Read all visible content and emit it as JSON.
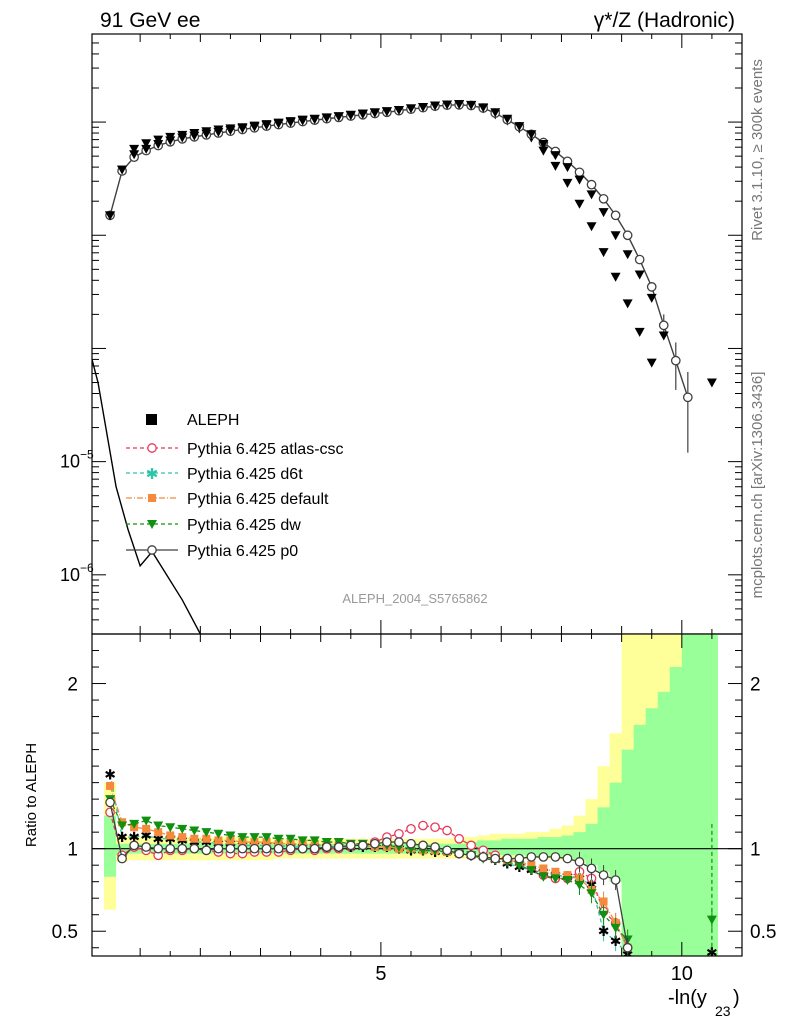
{
  "header": {
    "left_title": "91 GeV ee",
    "right_title": "γ*/Z (Hadronic)"
  },
  "side_labels": {
    "rivet": "Rivet 3.1.10, ≥ 300k events",
    "source": "mcplots.cern.ch [arXiv:1306.3436]"
  },
  "analysis_label": "ALEPH_2004_S5765862",
  "colors": {
    "data": "#000000",
    "atlas_csc": "#e8385a",
    "d6t": "#2ec4a6",
    "default": "#f58a3c",
    "dw": "#109010",
    "p0": "#404040",
    "band_yellow": "#ffff99",
    "band_green": "#99ff99"
  },
  "chart_data": [
    {
      "type": "scatter",
      "panel": "main",
      "xlabel": "-ln(y",
      "xlabel_sub": "23",
      "xlabel_close": ")",
      "ylabel": "",
      "xlim": [
        0.2,
        11.0
      ],
      "yscale": "log",
      "ylim": [
        3e-07,
        0.06
      ],
      "ytick_labels": [
        {
          "value": 1e-05,
          "base": "10",
          "exp": "−5"
        },
        {
          "value": 1e-06,
          "base": "10",
          "exp": "−6"
        }
      ],
      "legend_position": "middle-left",
      "x": [
        0.5,
        0.7,
        0.9,
        1.1,
        1.3,
        1.5,
        1.7,
        1.9,
        2.1,
        2.3,
        2.5,
        2.7,
        2.9,
        3.1,
        3.3,
        3.5,
        3.7,
        3.9,
        4.1,
        4.3,
        4.5,
        4.7,
        4.9,
        5.1,
        5.3,
        5.5,
        5.7,
        5.9,
        6.1,
        6.3,
        6.5,
        6.7,
        6.9,
        7.1,
        7.3,
        7.5,
        7.7,
        7.9,
        8.1,
        8.3,
        8.5,
        8.7,
        8.9,
        9.1,
        9.3,
        9.5,
        9.7,
        9.9,
        10.1,
        10.5
      ],
      "series": [
        {
          "name": "ALEPH",
          "marker": "square",
          "values": [
            0.0015,
            0.0038,
            0.0052,
            0.0058,
            0.0064,
            0.0069,
            0.0073,
            0.0076,
            0.0079,
            0.0082,
            0.0085,
            0.0088,
            0.0091,
            0.0094,
            0.0097,
            0.01,
            0.0103,
            0.0106,
            0.0109,
            0.0112,
            0.0115,
            0.0118,
            0.0121,
            0.0124,
            0.0128,
            0.0132,
            0.0136,
            0.014,
            0.0143,
            0.0144,
            0.0142,
            0.0135,
            0.0122,
            0.0107,
            0.0092,
            0.0078,
            0.0064,
            0.0051,
            0.004,
            0.0031,
            0.0023,
            0.0016,
            0.001,
            0.00068,
            0.00045,
            0.00028,
            0.00013,
            null,
            null,
            5e-05
          ],
          "errors": [
            0,
            0,
            0,
            0,
            0,
            0,
            0,
            0,
            0,
            0,
            0,
            0,
            0,
            0,
            0,
            0,
            0,
            0,
            0,
            0,
            0,
            0,
            0,
            0,
            0,
            0,
            0,
            0,
            0,
            0,
            0,
            0,
            0,
            0,
            0,
            0,
            0,
            0,
            0,
            0,
            0,
            0,
            0,
            0,
            0,
            0,
            0,
            0,
            0,
            0
          ]
        },
        {
          "name": "Pythia 6.425 atlas-csc",
          "marker": "circle-open",
          "dashed": true,
          "hidden_in_main": true,
          "values": []
        },
        {
          "name": "Pythia 6.425 d6t",
          "marker": "star",
          "dashed": true,
          "hidden_in_main": true,
          "values": []
        },
        {
          "name": "Pythia 6.425 default",
          "marker": "square",
          "dashed": true,
          "hidden_in_main": true,
          "values": []
        },
        {
          "name": "Pythia 6.425 dw",
          "marker": "triangle-down",
          "dashed": true,
          "values": [
            0.0015,
            0.0038,
            0.0058,
            0.0065,
            0.007,
            0.0074,
            0.0077,
            0.008,
            0.0083,
            0.0086,
            0.0088,
            0.009,
            0.0093,
            0.0096,
            0.0099,
            0.0102,
            0.0105,
            0.0107,
            0.011,
            0.0113,
            0.0116,
            0.0119,
            0.0122,
            0.0125,
            0.0128,
            0.0132,
            0.0136,
            0.014,
            0.0143,
            0.0144,
            0.0141,
            0.0132,
            0.0117,
            0.0103,
            0.0088,
            0.0073,
            0.0056,
            0.0041,
            0.0029,
            0.0019,
            0.0012,
            0.00071,
            0.00043,
            0.00025,
            0.00014,
            7.5e-05,
            null,
            null,
            null,
            null
          ]
        },
        {
          "name": "Pythia 6.425 p0",
          "marker": "circle-open",
          "dashed": false,
          "values": [
            0.0015,
            0.0037,
            0.0049,
            0.0056,
            0.0062,
            0.0067,
            0.0071,
            0.0074,
            0.0077,
            0.008,
            0.0083,
            0.0086,
            0.0089,
            0.0092,
            0.0095,
            0.0098,
            0.0101,
            0.0104,
            0.0107,
            0.011,
            0.0113,
            0.0116,
            0.0119,
            0.0122,
            0.0126,
            0.013,
            0.0134,
            0.0138,
            0.0141,
            0.0142,
            0.014,
            0.0133,
            0.012,
            0.0105,
            0.0091,
            0.0078,
            0.0066,
            0.0055,
            0.0045,
            0.0036,
            0.0028,
            0.0021,
            0.0015,
            0.001,
            0.00061,
            0.00035,
            0.00016,
            7.8e-05,
            3.7e-05,
            null
          ],
          "errors": [
            0,
            0,
            0,
            0,
            0,
            0,
            0,
            0,
            0,
            0,
            0,
            0,
            0,
            0,
            0,
            0,
            0,
            0,
            0,
            0,
            0,
            0,
            0,
            0,
            0,
            0,
            0,
            0,
            0,
            0,
            0,
            0,
            0,
            0,
            0,
            0,
            0,
            0,
            0,
            0,
            0,
            0,
            0,
            0,
            3e-05,
            3e-05,
            4e-05,
            3.5e-05,
            2.5e-05,
            0
          ]
        }
      ],
      "overlay_curve": {
        "x": [
          0.2,
          0.3,
          0.6,
          0.8,
          1.0,
          1.2,
          1.7,
          2.0
        ],
        "y": [
          8e-05,
          5e-05,
          6e-06,
          2.5e-06,
          1.2e-06,
          1.6e-06,
          6e-07,
          3e-07
        ]
      }
    },
    {
      "type": "line",
      "panel": "ratio",
      "xlabel": "-ln(y",
      "xlabel_sub": "23",
      "xlabel_close": ")",
      "ylabel": "Ratio to ALEPH",
      "xlim": [
        0.2,
        11.0
      ],
      "ylim": [
        0.35,
        2.3
      ],
      "x_tick_labels": [
        "5",
        "10"
      ],
      "x_ticks": [
        5,
        10
      ],
      "y_tick_labels": [
        "0.5",
        "1",
        "2"
      ],
      "y_ticks": [
        0.5,
        1,
        2
      ],
      "x": [
        0.5,
        0.7,
        0.9,
        1.1,
        1.3,
        1.5,
        1.7,
        1.9,
        2.1,
        2.3,
        2.5,
        2.7,
        2.9,
        3.1,
        3.3,
        3.5,
        3.7,
        3.9,
        4.1,
        4.3,
        4.5,
        4.7,
        4.9,
        5.1,
        5.3,
        5.5,
        5.7,
        5.9,
        6.1,
        6.3,
        6.5,
        6.7,
        6.9,
        7.1,
        7.3,
        7.5,
        7.7,
        7.9,
        8.1,
        8.3,
        8.5,
        8.7,
        8.9,
        9.1,
        9.3,
        9.5,
        9.7,
        9.9,
        10.1,
        10.5
      ],
      "bands": {
        "yellow_low": [
          0.63,
          0.92,
          0.93,
          0.93,
          0.93,
          0.93,
          0.93,
          0.93,
          0.93,
          0.93,
          0.93,
          0.93,
          0.93,
          0.93,
          0.94,
          0.94,
          0.94,
          0.94,
          0.94,
          0.94,
          0.94,
          0.94,
          0.94,
          0.94,
          0.94,
          0.94,
          0.94,
          0.94,
          0.94,
          0.94,
          0.94,
          0.94,
          0.94,
          0.94,
          0.94,
          0.94,
          0.94,
          0.93,
          0.93,
          0.92,
          0.9,
          0.86,
          0.8,
          0.3,
          0.3,
          0.3,
          0.3,
          0.3,
          0.3,
          0.3
        ],
        "yellow_high": [
          1.4,
          1.08,
          1.08,
          1.07,
          1.07,
          1.07,
          1.07,
          1.07,
          1.07,
          1.07,
          1.07,
          1.07,
          1.07,
          1.06,
          1.06,
          1.06,
          1.06,
          1.06,
          1.06,
          1.06,
          1.06,
          1.06,
          1.06,
          1.06,
          1.06,
          1.06,
          1.06,
          1.06,
          1.06,
          1.07,
          1.07,
          1.08,
          1.09,
          1.09,
          1.09,
          1.1,
          1.1,
          1.12,
          1.14,
          1.2,
          1.3,
          1.5,
          1.7,
          2.3,
          2.3,
          2.3,
          2.3,
          2.3,
          2.3,
          2.3
        ],
        "green_low": [
          0.83,
          0.96,
          0.97,
          0.97,
          0.97,
          0.97,
          0.97,
          0.97,
          0.97,
          0.97,
          0.97,
          0.97,
          0.97,
          0.97,
          0.97,
          0.97,
          0.97,
          0.97,
          0.97,
          0.97,
          0.97,
          0.97,
          0.97,
          0.97,
          0.97,
          0.97,
          0.97,
          0.97,
          0.97,
          0.97,
          0.97,
          0.96,
          0.96,
          0.96,
          0.96,
          0.95,
          0.95,
          0.95,
          0.94,
          0.93,
          0.9,
          0.86,
          0.8,
          0.3,
          0.3,
          0.3,
          0.3,
          0.3,
          0.3,
          0.3
        ],
        "green_high": [
          1.2,
          1.03,
          1.03,
          1.03,
          1.03,
          1.03,
          1.03,
          1.03,
          1.03,
          1.03,
          1.03,
          1.03,
          1.03,
          1.03,
          1.03,
          1.03,
          1.03,
          1.03,
          1.03,
          1.03,
          1.03,
          1.03,
          1.03,
          1.03,
          1.03,
          1.03,
          1.03,
          1.03,
          1.03,
          1.03,
          1.04,
          1.05,
          1.05,
          1.06,
          1.06,
          1.06,
          1.07,
          1.07,
          1.08,
          1.1,
          1.15,
          1.25,
          1.4,
          1.6,
          1.75,
          1.85,
          1.95,
          2.1,
          2.3,
          2.3
        ]
      },
      "series": [
        {
          "name": "Pythia 6.425 atlas-csc",
          "values": [
            1.22,
            0.96,
            1.01,
            0.99,
            0.96,
            0.99,
            0.99,
            1.0,
            0.99,
            0.98,
            0.97,
            0.97,
            0.98,
            0.98,
            0.98,
            0.99,
            1.0,
            0.99,
            1.0,
            1.0,
            1.01,
            1.02,
            1.04,
            1.07,
            1.09,
            1.12,
            1.14,
            1.13,
            1.11,
            1.06,
            1.02,
            0.99,
            0.96,
            0.94,
            0.92,
            0.88,
            0.84,
            0.82,
            0.82,
            0.86,
            0.82,
            0.62,
            0.55,
            0.4,
            null,
            null,
            null,
            null,
            null,
            null
          ]
        },
        {
          "name": "Pythia 6.425 d6t",
          "values": [
            1.45,
            1.07,
            1.07,
            1.08,
            1.06,
            1.06,
            1.05,
            1.04,
            1.04,
            1.03,
            1.03,
            1.02,
            1.02,
            1.02,
            1.02,
            1.01,
            1.01,
            1.01,
            1.01,
            1.01,
            1.01,
            1.01,
            1.01,
            1.01,
            1.0,
            0.99,
            0.99,
            0.98,
            0.98,
            0.97,
            0.96,
            0.95,
            0.93,
            0.91,
            0.89,
            0.87,
            0.86,
            0.84,
            0.83,
            0.82,
            0.78,
            0.5,
            0.44,
            0.36,
            null,
            null,
            null,
            null,
            null,
            0.37
          ]
        },
        {
          "name": "Pythia 6.425 default",
          "values": [
            1.38,
            1.16,
            1.13,
            1.12,
            1.1,
            1.08,
            1.07,
            1.06,
            1.06,
            1.05,
            1.05,
            1.04,
            1.04,
            1.04,
            1.03,
            1.03,
            1.03,
            1.02,
            1.02,
            1.02,
            1.02,
            1.02,
            1.01,
            1.01,
            1.0,
            1.0,
            0.99,
            0.99,
            0.98,
            0.97,
            0.96,
            0.95,
            0.94,
            0.93,
            0.92,
            0.9,
            0.88,
            0.86,
            0.84,
            0.82,
            0.75,
            0.68,
            0.55,
            0.4,
            null,
            null,
            null,
            null,
            null,
            null
          ]
        },
        {
          "name": "Pythia 6.425 dw",
          "values": [
            1.3,
            1.14,
            1.15,
            1.17,
            1.14,
            1.13,
            1.12,
            1.11,
            1.1,
            1.09,
            1.08,
            1.07,
            1.07,
            1.07,
            1.06,
            1.06,
            1.05,
            1.05,
            1.04,
            1.04,
            1.03,
            1.03,
            1.02,
            1.02,
            1.01,
            1.0,
            0.99,
            0.99,
            0.98,
            0.97,
            0.96,
            0.94,
            0.93,
            0.92,
            0.9,
            0.87,
            0.83,
            0.82,
            0.81,
            0.78,
            0.73,
            0.6,
            0.52,
            0.45,
            null,
            null,
            null,
            null,
            null,
            0.57
          ]
        },
        {
          "name": "Pythia 6.425 p0",
          "values": [
            1.28,
            0.94,
            1.02,
            1.01,
            1.0,
            1.0,
            1.0,
            1.0,
            0.99,
            1.0,
            1.0,
            1.0,
            1.0,
            1.0,
            1.0,
            1.0,
            1.0,
            1.0,
            1.01,
            1.01,
            1.02,
            1.02,
            1.03,
            1.04,
            1.04,
            1.03,
            1.02,
            1.01,
            0.99,
            0.97,
            0.96,
            0.95,
            0.94,
            0.94,
            0.94,
            0.95,
            0.95,
            0.95,
            0.94,
            0.92,
            0.88,
            0.84,
            0.81,
            0.4,
            null,
            null,
            null,
            null,
            null,
            null
          ]
        }
      ]
    }
  ]
}
